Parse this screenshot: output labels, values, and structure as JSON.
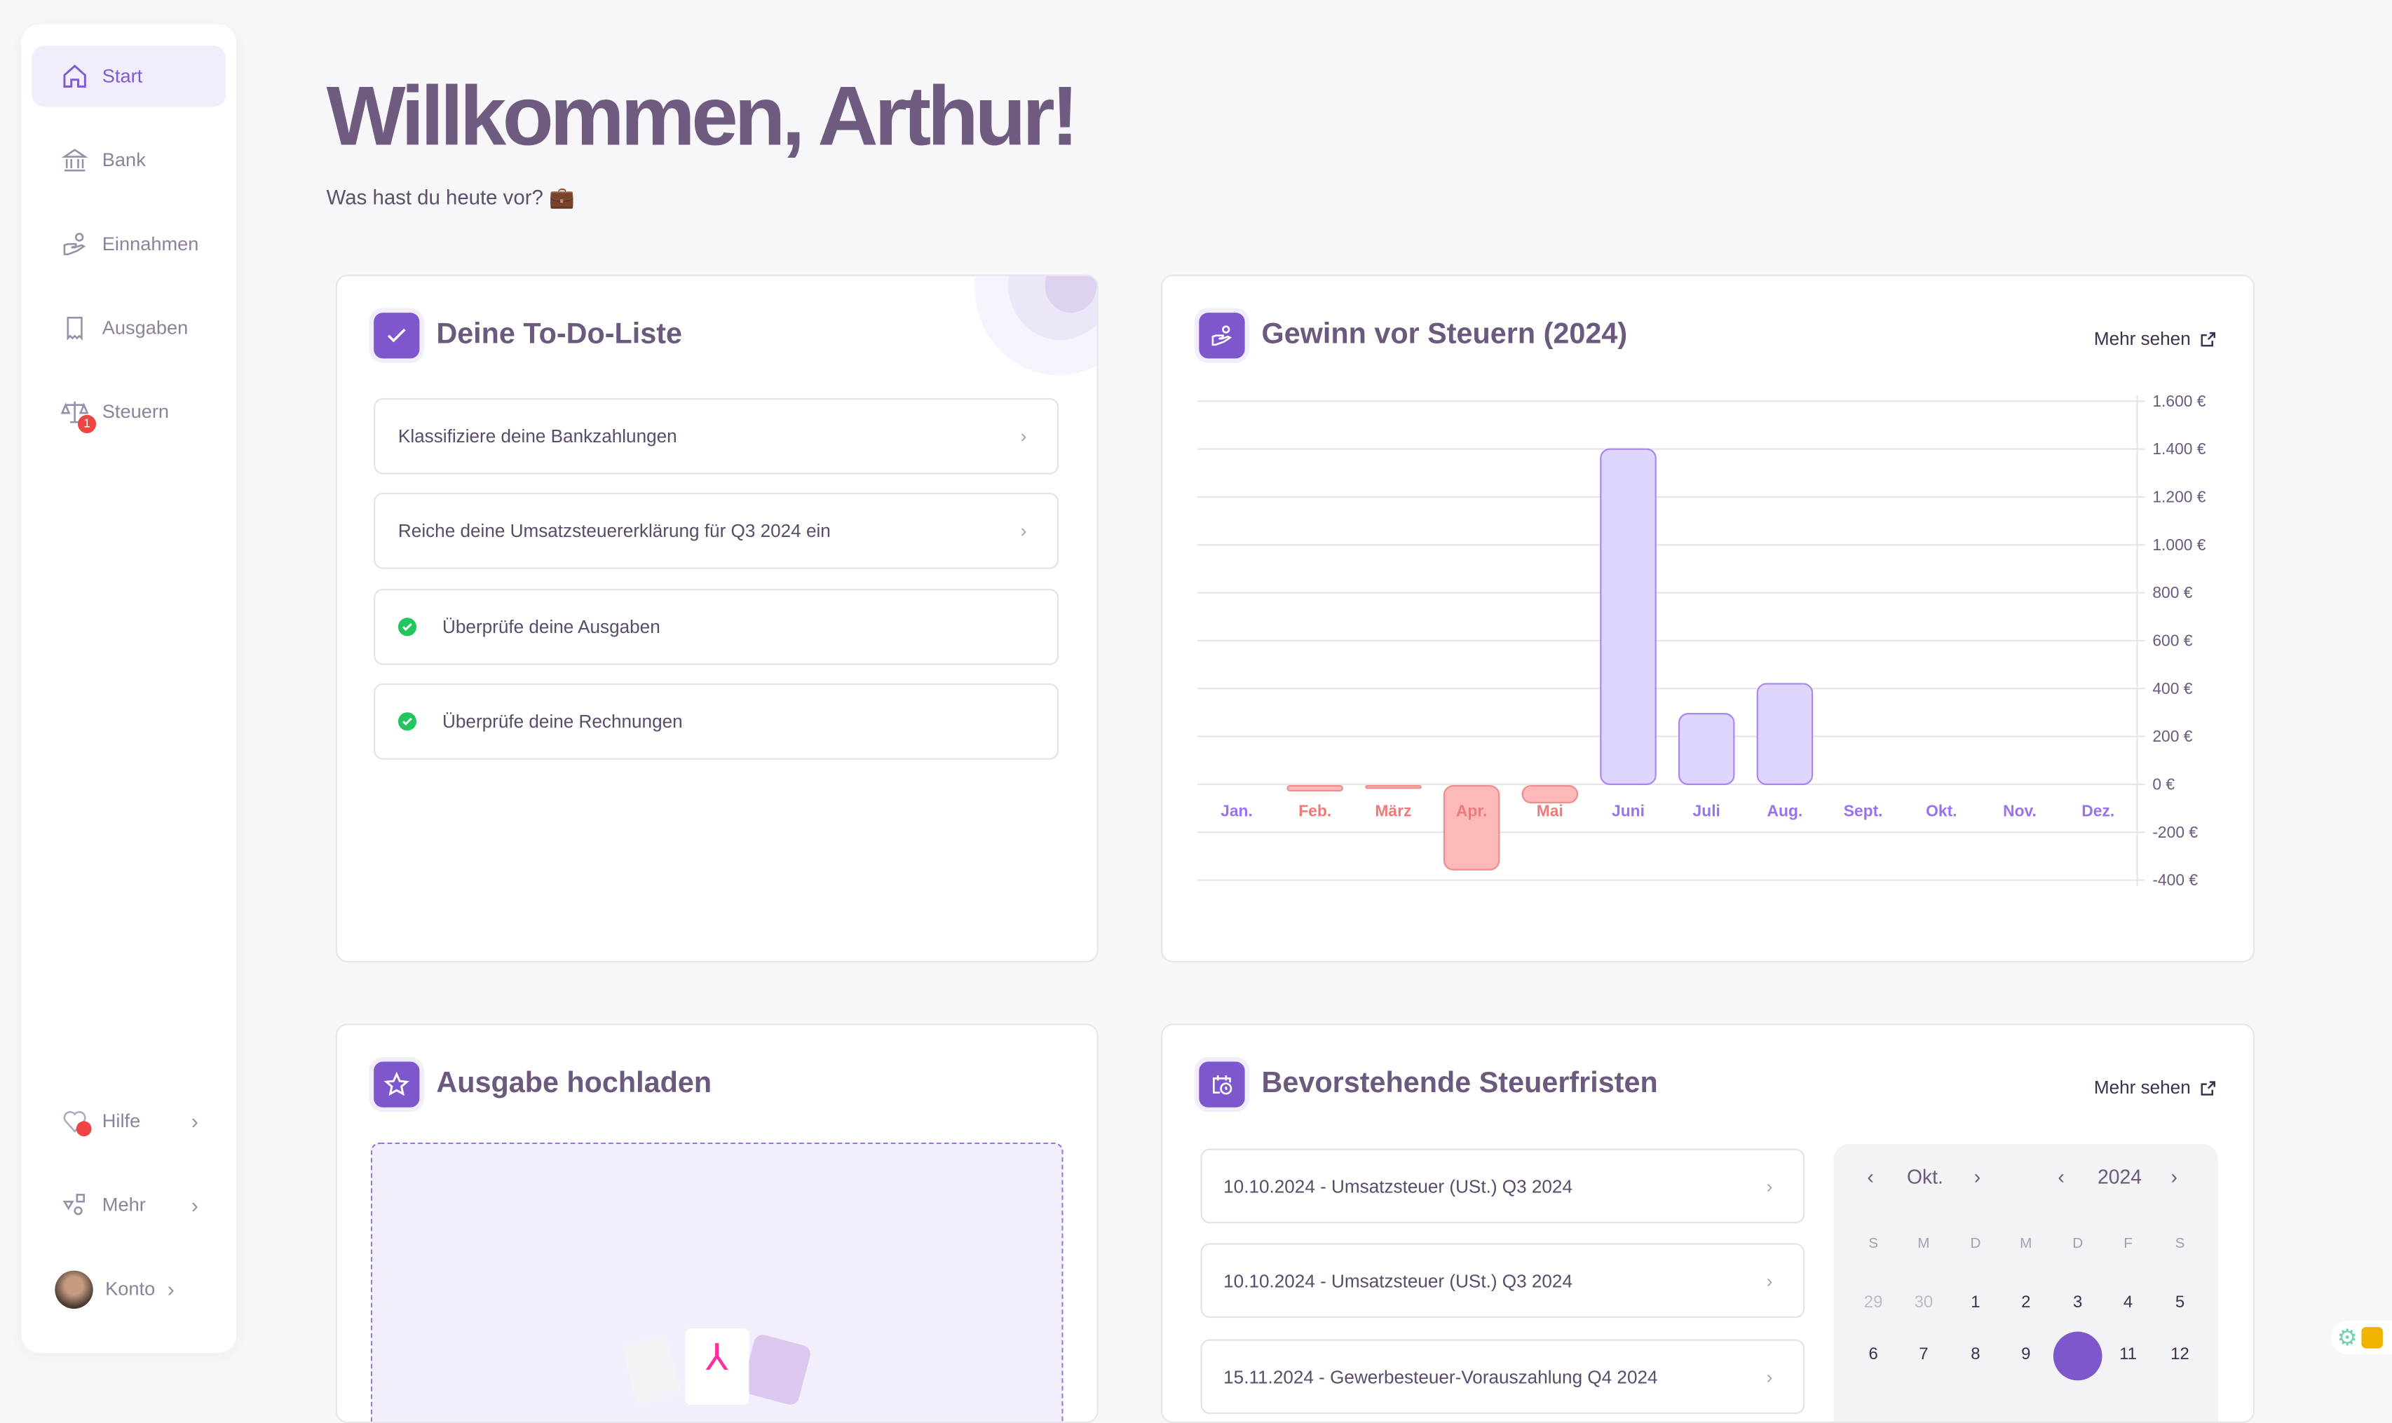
{
  "sidebar": {
    "items": [
      {
        "label": "Start",
        "icon": "home-icon"
      },
      {
        "label": "Bank",
        "icon": "bank-icon"
      },
      {
        "label": "Einnahmen",
        "icon": "income-hand-icon"
      },
      {
        "label": "Ausgaben",
        "icon": "receipt-icon"
      },
      {
        "label": "Steuern",
        "icon": "scale-icon",
        "badge": "1"
      }
    ],
    "bottom": [
      {
        "label": "Hilfe",
        "icon": "heart-icon"
      },
      {
        "label": "Mehr",
        "icon": "shapes-icon"
      },
      {
        "label": "Konto",
        "icon": "avatar"
      }
    ]
  },
  "header": {
    "title": "Willkommen, Arthur!",
    "subtitle": "Was hast du heute vor? 💼"
  },
  "todo": {
    "title": "Deine To-Do-Liste",
    "items": [
      {
        "label": "Klassifiziere deine Bankzahlungen",
        "done": false
      },
      {
        "label": "Reiche deine Umsatzsteuererklärung für Q3 2024 ein",
        "done": false
      },
      {
        "label": "Überprüfe deine Ausgaben",
        "done": true
      },
      {
        "label": "Überprüfe deine Rechnungen",
        "done": true
      }
    ]
  },
  "profit": {
    "title": "Gewinn vor Steuern (2024)",
    "more": "Mehr sehen"
  },
  "upload": {
    "title": "Ausgabe hochladen"
  },
  "deadlines": {
    "title": "Bevorstehende Steuerfristen",
    "more": "Mehr sehen",
    "items": [
      "10.10.2024 - Umsatzsteuer (USt.) Q3 2024",
      "10.10.2024 - Umsatzsteuer (USt.) Q3 2024",
      "15.11.2024 - Gewerbesteuer-Vorauszahlung Q4 2024"
    ],
    "calendar": {
      "month": "Okt.",
      "year": "2024",
      "weekdays": [
        "S",
        "M",
        "D",
        "M",
        "D",
        "F",
        "S"
      ],
      "rows": [
        [
          "29",
          "30",
          "1",
          "2",
          "3",
          "4",
          "5"
        ],
        [
          "6",
          "7",
          "8",
          "9",
          "10",
          "11",
          "12"
        ]
      ],
      "muted": [
        "29",
        "30"
      ],
      "selected": "10"
    }
  },
  "colors": {
    "accent": "#7e57cc",
    "positive": "#e0d5fd",
    "negative": "#fdb9b9"
  },
  "chart_data": {
    "type": "bar",
    "title": "Gewinn vor Steuern (2024)",
    "categories": [
      "Jan.",
      "Feb.",
      "März",
      "Apr.",
      "Mai",
      "Juni",
      "Juli",
      "Aug.",
      "Sept.",
      "Okt.",
      "Nov.",
      "Dez."
    ],
    "values": [
      0,
      -20,
      -3,
      -350,
      -70,
      1400,
      295,
      420,
      0,
      0,
      0,
      0
    ],
    "ylim": [
      -400,
      1600
    ],
    "yticks": [
      {
        "v": 1600,
        "label": "1.600 €"
      },
      {
        "v": 1400,
        "label": "1.400 €"
      },
      {
        "v": 1200,
        "label": "1.200 €"
      },
      {
        "v": 1000,
        "label": "1.000 €"
      },
      {
        "v": 800,
        "label": "800 €"
      },
      {
        "v": 600,
        "label": "600 €"
      },
      {
        "v": 400,
        "label": "400 €"
      },
      {
        "v": 200,
        "label": "200 €"
      },
      {
        "v": 0,
        "label": "0 €"
      },
      {
        "v": -200,
        "label": "-200 €"
      },
      {
        "v": -400,
        "label": "-400 €"
      }
    ],
    "grid": true,
    "xlabel": "",
    "ylabel": ""
  }
}
